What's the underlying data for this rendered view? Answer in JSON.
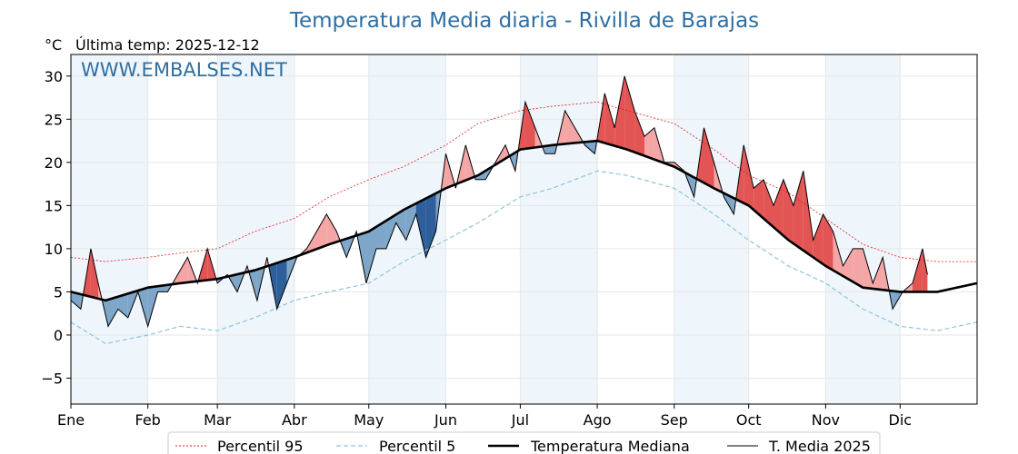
{
  "chart_data": {
    "type": "line",
    "title": "Temperatura Media diaria - Rivilla de Barajas",
    "subtitle": "Última temp: 2025-12-12",
    "ylabel": "°C",
    "watermark": "WWW.EMBALSES.NET",
    "ylim": [
      -8,
      32.5
    ],
    "yticks": [
      -5,
      0,
      5,
      10,
      15,
      20,
      25,
      30
    ],
    "xlim": [
      1,
      366
    ],
    "months": [
      {
        "label": "Ene",
        "day": 1
      },
      {
        "label": "Feb",
        "day": 32
      },
      {
        "label": "Mar",
        "day": 60
      },
      {
        "label": "Abr",
        "day": 91
      },
      {
        "label": "May",
        "day": 121
      },
      {
        "label": "Jun",
        "day": 152
      },
      {
        "label": "Jul",
        "day": 182
      },
      {
        "label": "Ago",
        "day": 213
      },
      {
        "label": "Sep",
        "day": 244
      },
      {
        "label": "Oct",
        "day": 274
      },
      {
        "label": "Nov",
        "day": 305
      },
      {
        "label": "Dic",
        "day": 335
      }
    ],
    "grid": true,
    "legend_position": "bottom",
    "colors": {
      "p95": "#e31a1c",
      "p5": "#8fc4d9",
      "median": "#000000",
      "current": "#000000",
      "above_fill": "#f4a6a6",
      "above_strong": "#e35555",
      "below_fill": "#7ea6c8",
      "below_strong": "#2e5f9a",
      "band": "#eef5fb"
    },
    "series": [
      {
        "key": "p95",
        "name": "Percentil 95",
        "x": [
          1,
          15,
          32,
          45,
          60,
          75,
          91,
          105,
          121,
          135,
          152,
          165,
          182,
          195,
          213,
          225,
          244,
          260,
          274,
          290,
          305,
          320,
          335,
          350,
          366
        ],
        "y": [
          9,
          8.5,
          9,
          9.5,
          10,
          12,
          13.5,
          16,
          18,
          19.5,
          22,
          24.5,
          26,
          26.5,
          27,
          26,
          24.5,
          21.5,
          18.5,
          16.5,
          13.5,
          10.5,
          9,
          8.5,
          8.5
        ]
      },
      {
        "key": "p5",
        "name": "Percentil 5",
        "x": [
          1,
          15,
          32,
          45,
          60,
          75,
          91,
          105,
          121,
          135,
          152,
          165,
          182,
          195,
          213,
          225,
          244,
          260,
          274,
          290,
          305,
          320,
          335,
          350,
          366
        ],
        "y": [
          1.5,
          -1,
          0,
          1,
          0.5,
          2,
          4,
          5,
          6,
          8.5,
          11,
          13,
          16,
          17,
          19,
          18.5,
          17,
          14,
          11,
          8,
          6,
          3,
          1,
          0.5,
          1.5
        ]
      },
      {
        "key": "median",
        "name": "Temperatura Mediana",
        "x": [
          1,
          15,
          32,
          45,
          60,
          75,
          91,
          105,
          121,
          135,
          152,
          165,
          182,
          195,
          213,
          225,
          244,
          260,
          274,
          290,
          305,
          320,
          335,
          350,
          366
        ],
        "y": [
          5,
          4,
          5.5,
          6,
          6.5,
          7.5,
          9,
          10.5,
          12,
          14.5,
          17,
          18.5,
          21.5,
          22,
          22.5,
          21.5,
          19.5,
          17,
          15,
          11,
          8,
          5.5,
          5,
          5,
          6
        ]
      },
      {
        "key": "current",
        "name": "T. Media 2025",
        "x": [
          1,
          5,
          9,
          12,
          16,
          20,
          24,
          28,
          32,
          36,
          40,
          44,
          48,
          52,
          56,
          60,
          64,
          68,
          72,
          76,
          80,
          84,
          88,
          92,
          96,
          100,
          104,
          108,
          112,
          116,
          120,
          124,
          128,
          132,
          136,
          140,
          144,
          148,
          152,
          156,
          160,
          164,
          168,
          172,
          176,
          180,
          184,
          188,
          192,
          196,
          200,
          204,
          208,
          212,
          216,
          220,
          224,
          228,
          232,
          236,
          240,
          244,
          248,
          252,
          256,
          260,
          264,
          268,
          272,
          276,
          280,
          284,
          288,
          292,
          296,
          300,
          304,
          308,
          312,
          316,
          320,
          324,
          328,
          332,
          336,
          340,
          344,
          346
        ],
        "y": [
          4,
          3,
          10,
          6,
          1,
          3,
          2,
          5,
          1,
          5,
          5,
          7,
          9,
          6,
          10,
          6,
          7,
          5,
          8,
          4,
          9,
          3,
          6,
          9,
          10,
          12,
          14,
          12,
          9,
          12,
          6,
          10,
          10,
          13,
          11,
          14,
          9,
          12,
          21,
          17,
          22,
          18,
          18,
          20,
          22,
          19,
          27,
          24,
          21,
          21,
          26,
          24,
          22,
          21,
          28,
          24,
          30,
          26,
          23,
          24,
          20,
          20,
          19,
          16,
          24,
          20,
          16,
          14,
          22,
          17,
          18,
          15,
          18,
          15,
          19,
          11,
          14,
          12,
          8,
          10,
          10,
          6,
          9,
          3,
          5,
          6,
          10,
          7
        ]
      }
    ]
  }
}
